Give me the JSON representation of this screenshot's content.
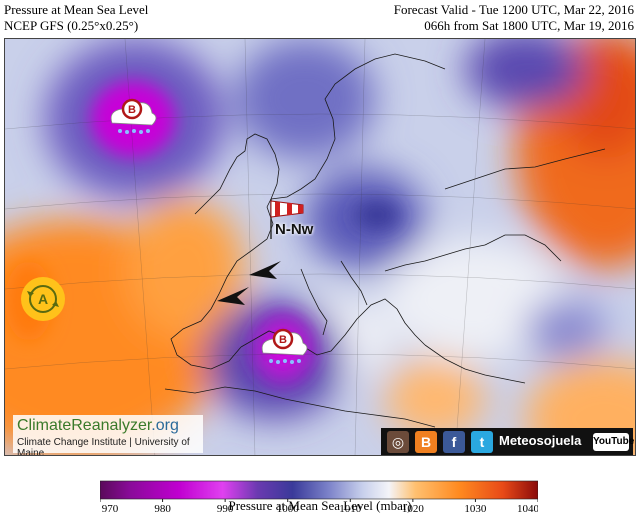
{
  "header": {
    "left_line1": "Pressure at Mean Sea Level",
    "left_line2": "NCEP GFS (0.25°x0.25°)",
    "right_line1": "Forecast Valid - Tue 1200 UTC, Mar 22, 2016",
    "right_line2": "066h from Sat 1800 UTC, Mar 19, 2016"
  },
  "map": {
    "wind_label": "N-Nw",
    "low_symbol": "B",
    "high_symbol": "A",
    "colors": {
      "low_center": "#c000d0",
      "deep_low": "#4a2a9a",
      "mid_low": "#6a6ac0",
      "neutral": "#e8ecf4",
      "high_orange": "#ff8c20",
      "high_red": "#e8501a"
    }
  },
  "branding": {
    "site_name_a": "ClimateReanalyzer",
    "site_name_b": ".org",
    "institution": "Climate Change Institute | University of Maine",
    "social_name": "Meteosojuela",
    "youtube": "YouTube",
    "icons": [
      "instagram-icon",
      "blogger-icon",
      "facebook-icon",
      "twitter-icon"
    ]
  },
  "colorbar": {
    "title": "Pressure at Mean Sea Level (mbar)",
    "ticks": [
      "970",
      "980",
      "990",
      "1000",
      "1010",
      "1020",
      "1030",
      "1040"
    ],
    "min": 970,
    "max": 1040
  }
}
